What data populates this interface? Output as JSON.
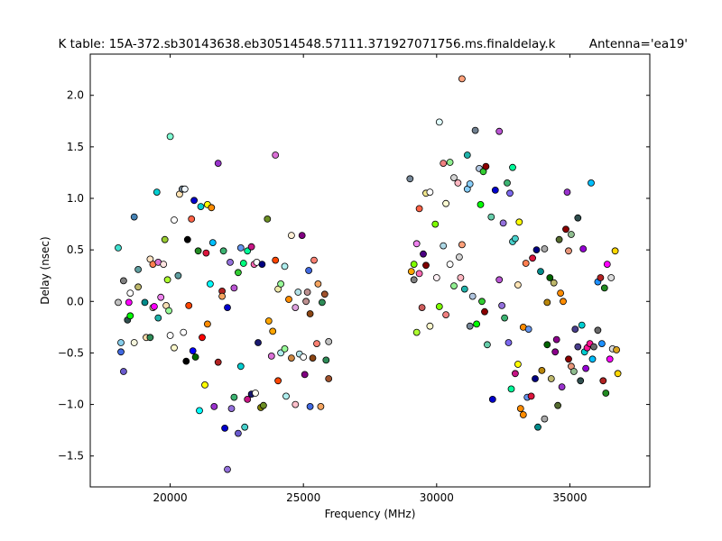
{
  "chart_data": {
    "type": "scatter",
    "title": "K table: 15A-372.sb30143638.eb30514548.57111.371927071756.ms.finaldelay.k",
    "subtitle": "Antenna='ea19'",
    "xlabel": "Frequency (MHz)",
    "ylabel": "Delay (nsec)",
    "xlim": [
      17000,
      38000
    ],
    "ylim": [
      -1.8,
      2.4
    ],
    "xticks": [
      20000,
      25000,
      30000,
      35000
    ],
    "xtick_labels": [
      "20000",
      "25000",
      "30000",
      "35000"
    ],
    "yticks": [
      -1.5,
      -1.0,
      -0.5,
      0.0,
      0.5,
      1.0,
      1.5,
      2.0
    ],
    "ytick_labels": [
      "−1.5",
      "−1.0",
      "−0.5",
      "0.0",
      "0.5",
      "1.0",
      "1.5",
      "2.0"
    ],
    "grid": false,
    "legend": false,
    "points": [
      [
        18050,
        0.52,
        "#40e0d0"
      ],
      [
        18050,
        -0.01,
        "#c0c0c0"
      ],
      [
        18150,
        -0.4,
        "#87ceeb"
      ],
      [
        18150,
        -0.49,
        "#4169e1"
      ],
      [
        18250,
        -0.68,
        "#6a5acd"
      ],
      [
        18250,
        0.2,
        "#808080"
      ],
      [
        18400,
        -0.18,
        "#2f4f4f"
      ],
      [
        18450,
        -0.01,
        "#ff00ff"
      ],
      [
        18500,
        -0.14,
        "#00ff00"
      ],
      [
        18500,
        0.08,
        "#ffffff"
      ],
      [
        18650,
        0.82,
        "#4682b4"
      ],
      [
        18650,
        -0.4,
        "#f5f5dc"
      ],
      [
        18800,
        0.31,
        "#5f9ea0"
      ],
      [
        18800,
        0.14,
        "#bdb76b"
      ],
      [
        19050,
        -0.01,
        "#008b8b"
      ],
      [
        19100,
        -0.35,
        "#ffdead"
      ],
      [
        19250,
        0.41,
        "#ffe4c4"
      ],
      [
        19250,
        -0.35,
        "#2e8b57"
      ],
      [
        19350,
        0.36,
        "#ff7f50"
      ],
      [
        19350,
        -0.06,
        "#ffdab9"
      ],
      [
        19400,
        -0.05,
        "#ff00ff"
      ],
      [
        19500,
        1.06,
        "#00ced1"
      ],
      [
        19550,
        0.38,
        "#da70d6"
      ],
      [
        19550,
        -0.16,
        "#20b2aa"
      ],
      [
        19650,
        0.04,
        "#ee82ee"
      ],
      [
        19750,
        0.36,
        "#ffe4e1"
      ],
      [
        19800,
        0.6,
        "#9acd32"
      ],
      [
        19850,
        -0.04,
        "#f5deb3"
      ],
      [
        19900,
        0.21,
        "#adff2f"
      ],
      [
        19950,
        -0.09,
        "#98fb98"
      ],
      [
        20000,
        1.6,
        "#7fffd4"
      ],
      [
        20000,
        -0.33,
        "#ffffff"
      ],
      [
        20150,
        0.79,
        "#ffffff"
      ],
      [
        20150,
        -0.45,
        "#fffacd"
      ],
      [
        20300,
        0.25,
        "#5f9ea0"
      ],
      [
        20350,
        1.04,
        "#ffe4b5"
      ],
      [
        20450,
        1.09,
        "#778899"
      ],
      [
        20500,
        -0.3,
        "#ffffff"
      ],
      [
        20550,
        1.09,
        "#f0f8ff"
      ],
      [
        20600,
        -0.58,
        "#000000"
      ],
      [
        20700,
        -0.04,
        "#ff4500"
      ],
      [
        20650,
        0.6,
        "#000000"
      ],
      [
        20800,
        0.8,
        "#ff6347"
      ],
      [
        20850,
        -0.48,
        "#0000ff"
      ],
      [
        20900,
        0.98,
        "#0000cd"
      ],
      [
        20950,
        -0.54,
        "#006400"
      ],
      [
        21050,
        0.49,
        "#228b22"
      ],
      [
        21100,
        -1.06,
        "#00ffff"
      ],
      [
        21150,
        0.92,
        "#00ced1"
      ],
      [
        21200,
        -0.35,
        "#ff0000"
      ],
      [
        21300,
        -0.81,
        "#ffff00"
      ],
      [
        21350,
        0.47,
        "#dc143c"
      ],
      [
        21400,
        0.94,
        "#ffff00"
      ],
      [
        21400,
        -0.22,
        "#ff8c00"
      ],
      [
        21500,
        0.17,
        "#00ffff"
      ],
      [
        21550,
        0.91,
        "#ff8c00"
      ],
      [
        21600,
        0.57,
        "#00bfff"
      ],
      [
        21650,
        -1.02,
        "#9932cc"
      ],
      [
        21800,
        1.34,
        "#9932cc"
      ],
      [
        21800,
        -0.59,
        "#b22222"
      ],
      [
        21950,
        0.1,
        "#b22222"
      ],
      [
        21950,
        0.05,
        "#f4a460"
      ],
      [
        22000,
        0.49,
        "#3cb371"
      ],
      [
        22050,
        -1.23,
        "#0000cd"
      ],
      [
        22150,
        -1.63,
        "#9370db"
      ],
      [
        22150,
        -0.06,
        "#0000cd"
      ],
      [
        22250,
        0.38,
        "#9370db"
      ],
      [
        22300,
        -1.04,
        "#9370db"
      ],
      [
        22400,
        0.13,
        "#ba55d3"
      ],
      [
        22400,
        -0.93,
        "#3cb371"
      ],
      [
        22550,
        -1.28,
        "#6a5acd"
      ],
      [
        22550,
        0.28,
        "#32cd32"
      ],
      [
        22650,
        0.52,
        "#6495ed"
      ],
      [
        22650,
        -0.63,
        "#00ced1"
      ],
      [
        22750,
        0.37,
        "#00ff7f"
      ],
      [
        22800,
        -1.22,
        "#48d1cc"
      ],
      [
        22900,
        -0.95,
        "#c71585"
      ],
      [
        22900,
        0.49,
        "#00fa9a"
      ],
      [
        23050,
        0.53,
        "#c71585"
      ],
      [
        23050,
        -0.9,
        "#191970"
      ],
      [
        23150,
        0.36,
        "#ff69b4"
      ],
      [
        23200,
        -0.89,
        "#fffff0"
      ],
      [
        23250,
        0.38,
        "#ffffff"
      ],
      [
        23300,
        -0.4,
        "#191970"
      ],
      [
        23400,
        -1.03,
        "#808000"
      ],
      [
        23450,
        0.36,
        "#000080"
      ],
      [
        23500,
        -1.01,
        "#6b8e23"
      ],
      [
        23650,
        0.8,
        "#6b8e23"
      ],
      [
        23700,
        -0.19,
        "#ffa500"
      ],
      [
        23800,
        -0.53,
        "#da70d6"
      ],
      [
        23850,
        -0.29,
        "#ffa500"
      ],
      [
        23950,
        1.42,
        "#da70d6"
      ],
      [
        23950,
        0.4,
        "#ff4500"
      ],
      [
        24050,
        -0.77,
        "#ff4500"
      ],
      [
        24050,
        0.12,
        "#eee8aa"
      ],
      [
        24150,
        0.17,
        "#98fb98"
      ],
      [
        24150,
        -0.5,
        "#afeeee"
      ],
      [
        24300,
        0.34,
        "#afeeee"
      ],
      [
        24300,
        -0.46,
        "#98fb98"
      ],
      [
        24350,
        -0.92,
        "#afeeee"
      ],
      [
        24450,
        0.02,
        "#ff8c00"
      ],
      [
        24550,
        0.64,
        "#ffefd5"
      ],
      [
        24550,
        -0.55,
        "#cd853f"
      ],
      [
        24700,
        -1.0,
        "#ffc0cb"
      ],
      [
        24700,
        -0.06,
        "#dda0dd"
      ],
      [
        24800,
        0.09,
        "#b0e0e6"
      ],
      [
        24850,
        -0.51,
        "#b0e0e6"
      ],
      [
        24950,
        0.64,
        "#800080"
      ],
      [
        25000,
        -0.54,
        "#ffffff"
      ],
      [
        25050,
        -0.71,
        "#800080"
      ],
      [
        25100,
        0.0,
        "#bc8f8f"
      ],
      [
        25150,
        0.09,
        "#bc8f8f"
      ],
      [
        25200,
        0.3,
        "#4169e1"
      ],
      [
        25250,
        -1.02,
        "#4169e1"
      ],
      [
        25250,
        -0.12,
        "#8b4513"
      ],
      [
        25350,
        -0.55,
        "#8b4513"
      ],
      [
        25400,
        0.4,
        "#fa8072"
      ],
      [
        25500,
        -0.41,
        "#fa8072"
      ],
      [
        25550,
        0.17,
        "#f4a460"
      ],
      [
        25650,
        -1.02,
        "#f4a460"
      ],
      [
        25700,
        -0.01,
        "#2e8b57"
      ],
      [
        25800,
        0.07,
        "#a0522d"
      ],
      [
        25850,
        -0.57,
        "#2e8b57"
      ],
      [
        25950,
        -0.75,
        "#a0522d"
      ],
      [
        25950,
        -0.39,
        "#c0c0c0"
      ],
      [
        29000,
        1.19,
        "#778899"
      ],
      [
        29050,
        0.29,
        "#ffa500"
      ],
      [
        29150,
        0.21,
        "#808080"
      ],
      [
        29150,
        0.36,
        "#7fff00"
      ],
      [
        29250,
        -0.3,
        "#adff2f"
      ],
      [
        29250,
        0.56,
        "#ee82ee"
      ],
      [
        29350,
        0.9,
        "#ff6347"
      ],
      [
        29350,
        0.27,
        "#ff69b4"
      ],
      [
        29450,
        -0.06,
        "#cd5c5c"
      ],
      [
        29500,
        0.46,
        "#4b0082"
      ],
      [
        29600,
        1.05,
        "#f0e68c"
      ],
      [
        29600,
        0.35,
        "#800000"
      ],
      [
        29750,
        1.06,
        "#ffffff"
      ],
      [
        29750,
        -0.24,
        "#fffacd"
      ],
      [
        29950,
        0.75,
        "#7cfc00"
      ],
      [
        30000,
        0.23,
        "#fff0f5"
      ],
      [
        30100,
        1.74,
        "#e0ffff"
      ],
      [
        30100,
        -0.05,
        "#7cfc00"
      ],
      [
        30250,
        0.54,
        "#add8e6"
      ],
      [
        30250,
        1.34,
        "#f08080"
      ],
      [
        30350,
        0.95,
        "#fafad2"
      ],
      [
        30350,
        -0.13,
        "#f08080"
      ],
      [
        30500,
        1.35,
        "#90ee90"
      ],
      [
        30500,
        0.36,
        "#ffffff"
      ],
      [
        30650,
        1.2,
        "#d3d3d3"
      ],
      [
        30650,
        0.15,
        "#90ee90"
      ],
      [
        30800,
        1.15,
        "#ffb6c1"
      ],
      [
        30850,
        0.43,
        "#d3d3d3"
      ],
      [
        30900,
        0.23,
        "#ffb6c1"
      ],
      [
        30950,
        0.55,
        "#ffa07a"
      ],
      [
        30950,
        2.16,
        "#ffa07a"
      ],
      [
        31050,
        0.12,
        "#20b2aa"
      ],
      [
        31150,
        1.09,
        "#87cefa"
      ],
      [
        31150,
        1.42,
        "#20b2aa"
      ],
      [
        31250,
        1.14,
        "#87cefa"
      ],
      [
        31250,
        -0.24,
        "#778899"
      ],
      [
        31350,
        0.05,
        "#b0c4de"
      ],
      [
        31450,
        1.66,
        "#708090"
      ],
      [
        31500,
        -0.22,
        "#00ff00"
      ],
      [
        31600,
        1.29,
        "#b0c4de"
      ],
      [
        31650,
        0.94,
        "#00ff00"
      ],
      [
        31700,
        0.0,
        "#32cd32"
      ],
      [
        31750,
        1.26,
        "#32cd32"
      ],
      [
        31800,
        -0.1,
        "#8b0000"
      ],
      [
        31850,
        1.31,
        "#8b0000"
      ],
      [
        31900,
        -0.42,
        "#66cdaa"
      ],
      [
        32050,
        0.82,
        "#66cdaa"
      ],
      [
        32100,
        -0.95,
        "#0000cd"
      ],
      [
        32200,
        1.08,
        "#0000cd"
      ],
      [
        32350,
        1.65,
        "#ba55d3"
      ],
      [
        32350,
        0.21,
        "#ba55d3"
      ],
      [
        32450,
        -0.04,
        "#9370db"
      ],
      [
        32500,
        0.76,
        "#9370db"
      ],
      [
        32550,
        -0.16,
        "#3cb371"
      ],
      [
        32650,
        1.15,
        "#3cb371"
      ],
      [
        32700,
        -0.4,
        "#7b68ee"
      ],
      [
        32750,
        1.05,
        "#7b68ee"
      ],
      [
        32800,
        -0.85,
        "#00fa9a"
      ],
      [
        32850,
        1.3,
        "#00fa9a"
      ],
      [
        32850,
        0.58,
        "#48d1cc"
      ],
      [
        32950,
        0.61,
        "#48d1cc"
      ],
      [
        32950,
        -0.7,
        "#c71585"
      ],
      [
        33050,
        -0.61,
        "#ffff00"
      ],
      [
        33050,
        0.16,
        "#ffe4b5"
      ],
      [
        33100,
        0.77,
        "#ffff00"
      ],
      [
        33150,
        -1.04,
        "#ff8c00"
      ],
      [
        33250,
        -0.25,
        "#ff8c00"
      ],
      [
        33250,
        -1.1,
        "#ff8c00"
      ],
      [
        33350,
        0.37,
        "#ff7f50"
      ],
      [
        33400,
        -0.93,
        "#6495ed"
      ],
      [
        33450,
        -0.27,
        "#6495ed"
      ],
      [
        33550,
        -0.92,
        "#dc143c"
      ],
      [
        33600,
        0.42,
        "#dc143c"
      ],
      [
        33700,
        -0.75,
        "#000080"
      ],
      [
        33750,
        0.5,
        "#000080"
      ],
      [
        33800,
        -1.22,
        "#008b8b"
      ],
      [
        33900,
        0.29,
        "#008b8b"
      ],
      [
        33950,
        -0.67,
        "#b8860b"
      ],
      [
        34050,
        -1.14,
        "#a9a9a9"
      ],
      [
        34050,
        0.51,
        "#a9a9a9"
      ],
      [
        34150,
        -0.42,
        "#006400"
      ],
      [
        34150,
        -0.01,
        "#b8860b"
      ],
      [
        34250,
        0.23,
        "#006400"
      ],
      [
        34300,
        -0.75,
        "#bdb76b"
      ],
      [
        34400,
        0.18,
        "#bdb76b"
      ],
      [
        34450,
        -0.49,
        "#8b008b"
      ],
      [
        34500,
        -0.37,
        "#8b008b"
      ],
      [
        34550,
        -1.01,
        "#556b2f"
      ],
      [
        34600,
        0.6,
        "#556b2f"
      ],
      [
        34650,
        0.08,
        "#ff8c00"
      ],
      [
        34700,
        -0.83,
        "#9932cc"
      ],
      [
        34750,
        0.0,
        "#ff8c00"
      ],
      [
        34850,
        0.7,
        "#8b0000"
      ],
      [
        34900,
        1.06,
        "#9932cc"
      ],
      [
        34950,
        -0.56,
        "#8b0000"
      ],
      [
        34950,
        0.49,
        "#e9967a"
      ],
      [
        35050,
        0.65,
        "#8fbc8f"
      ],
      [
        35050,
        -0.63,
        "#e9967a"
      ],
      [
        35150,
        -0.68,
        "#8fbc8f"
      ],
      [
        35200,
        -0.27,
        "#483d8b"
      ],
      [
        35300,
        0.81,
        "#2f4f4f"
      ],
      [
        35300,
        -0.44,
        "#483d8b"
      ],
      [
        35400,
        -0.77,
        "#2f4f4f"
      ],
      [
        35450,
        -0.23,
        "#00ced1"
      ],
      [
        35500,
        0.51,
        "#9400d3"
      ],
      [
        35550,
        -0.49,
        "#00ced1"
      ],
      [
        35600,
        -0.65,
        "#9400d3"
      ],
      [
        35650,
        -0.45,
        "#ff1493"
      ],
      [
        35750,
        -0.41,
        "#ff1493"
      ],
      [
        35800,
        1.15,
        "#00bfff"
      ],
      [
        35850,
        -0.56,
        "#00bfff"
      ],
      [
        35900,
        -0.44,
        "#696969"
      ],
      [
        36050,
        0.19,
        "#1e90ff"
      ],
      [
        36050,
        -0.28,
        "#696969"
      ],
      [
        36150,
        0.23,
        "#b22222"
      ],
      [
        36200,
        -0.41,
        "#1e90ff"
      ],
      [
        36250,
        -0.77,
        "#b22222"
      ],
      [
        36300,
        0.13,
        "#228b22"
      ],
      [
        36350,
        -0.89,
        "#228b22"
      ],
      [
        36400,
        0.36,
        "#ff00ff"
      ],
      [
        36500,
        -0.56,
        "#ff00ff"
      ],
      [
        36550,
        0.23,
        "#dcdcdc"
      ],
      [
        36600,
        -0.46,
        "#dcdcdc"
      ],
      [
        36700,
        0.49,
        "#ffd700"
      ],
      [
        36750,
        -0.47,
        "#daa520"
      ],
      [
        36800,
        -0.7,
        "#ffd700"
      ]
    ]
  }
}
